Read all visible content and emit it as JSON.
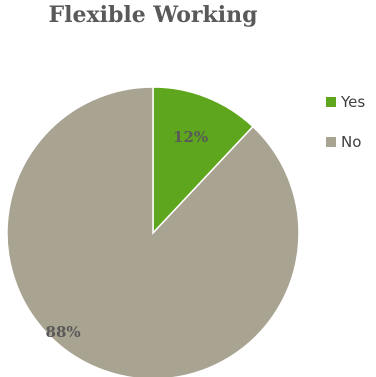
{
  "chart_data": {
    "type": "pie",
    "title": "Flexible Working",
    "categories": [
      "Yes",
      "No"
    ],
    "values": [
      12,
      88
    ],
    "data_labels": [
      "12%",
      "88%"
    ],
    "colors": [
      "#5ea61d",
      "#a9a391"
    ],
    "legend_position": "right",
    "start_angle_deg": 0,
    "direction": "clockwise"
  }
}
